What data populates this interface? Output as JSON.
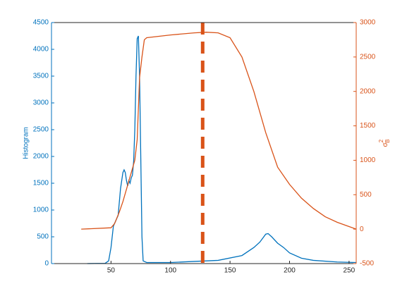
{
  "chart_data": {
    "type": "line",
    "ylabel": "Histogram",
    "y2label": {
      "symbol": "σ",
      "superscript": "2",
      "subscript": "B"
    },
    "xlim": [
      0,
      256
    ],
    "xticks": [
      50,
      100,
      150,
      200,
      250
    ],
    "ylim": [
      0,
      4500
    ],
    "yticks": [
      0,
      500,
      1000,
      1500,
      2000,
      2500,
      3000,
      3500,
      4000,
      4500
    ],
    "y2lim": [
      -500,
      3000
    ],
    "y2ticks": [
      -500,
      0,
      500,
      1000,
      1500,
      2000,
      2500,
      3000
    ],
    "left_color": "#0072bd",
    "right_color": "#d95319",
    "series": [
      {
        "color": "#0072bd",
        "axis": "y",
        "x": [
          30,
          45,
          48,
          50,
          52,
          54,
          56,
          58,
          60,
          61,
          62,
          63,
          64,
          65,
          66,
          67,
          68,
          69,
          70,
          71,
          72,
          73,
          74,
          75,
          76,
          77,
          80,
          100,
          120,
          140,
          160,
          170,
          175,
          180,
          182,
          185,
          190,
          195,
          200,
          210,
          220,
          240,
          256
        ],
        "values": [
          0,
          5,
          50,
          300,
          700,
          800,
          900,
          1400,
          1700,
          1750,
          1700,
          1550,
          1450,
          1550,
          1500,
          1600,
          1650,
          1900,
          2500,
          3500,
          4200,
          4250,
          3500,
          2000,
          500,
          50,
          20,
          20,
          40,
          60,
          150,
          300,
          400,
          550,
          560,
          500,
          380,
          300,
          200,
          100,
          60,
          30,
          20
        ]
      },
      {
        "color": "#d95319",
        "axis": "y2",
        "x": [
          25,
          50,
          53,
          57,
          60,
          65,
          70,
          72,
          74,
          76,
          78,
          80,
          100,
          120,
          130,
          140,
          150,
          160,
          170,
          180,
          190,
          200,
          210,
          220,
          230,
          240,
          256
        ],
        "values": [
          0,
          20,
          80,
          250,
          400,
          700,
          1000,
          1300,
          2200,
          2500,
          2750,
          2780,
          2820,
          2850,
          2860,
          2850,
          2780,
          2500,
          2000,
          1400,
          900,
          650,
          450,
          300,
          180,
          100,
          0
        ]
      }
    ],
    "threshold_x": 127
  }
}
